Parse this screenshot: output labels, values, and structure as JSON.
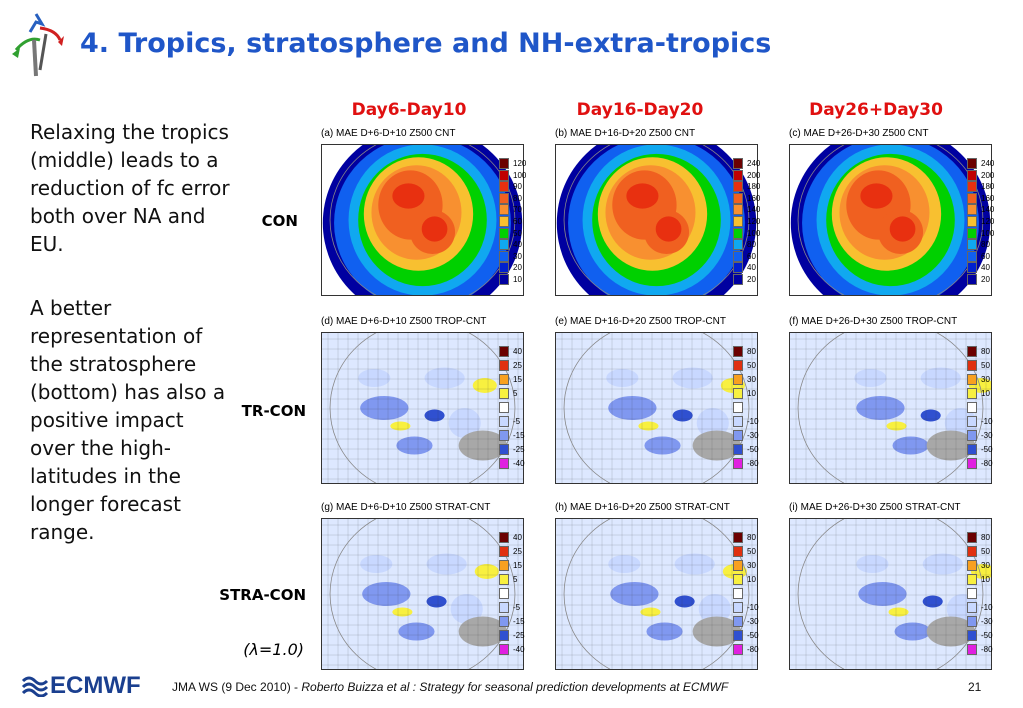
{
  "slide": {
    "title": "4. Tropics, stratosphere and NH-extra-tropics",
    "columns": [
      "Day6-Day10",
      "Day16-Day20",
      "Day26+Day30"
    ],
    "rows": [
      "CON",
      "TR-CON",
      "STRA-CON"
    ],
    "lambda": "(λ=1.0)",
    "bullets": [
      "Relaxing the tropics (middle) leads to a reduction of fc error both over NA and EU.",
      "A better representation of the stratosphere (bottom) has also a positive impact over the high-latitudes in the longer forecast range."
    ]
  },
  "panels": [
    {
      "title": "(a) MAE D+6-D+10 Z500 CNT",
      "scheme": "con",
      "labels": [
        "120",
        "100",
        "90",
        "80",
        "70",
        "60",
        "50",
        "40",
        "30",
        "20",
        "10"
      ]
    },
    {
      "title": "(b) MAE D+16-D+20 Z500 CNT",
      "scheme": "con",
      "labels": [
        "240",
        "200",
        "180",
        "160",
        "140",
        "120",
        "100",
        "80",
        "60",
        "40",
        "20"
      ]
    },
    {
      "title": "(c) MAE D+26-D+30 Z500 CNT",
      "scheme": "con",
      "labels": [
        "240",
        "200",
        "180",
        "160",
        "140",
        "120",
        "100",
        "80",
        "60",
        "40",
        "20"
      ]
    },
    {
      "title": "(d) MAE D+6-D+10 Z500 TROP-CNT",
      "scheme": "diff",
      "labels": [
        "40",
        "25",
        "15",
        "5",
        "",
        "-5",
        "-15",
        "-25",
        "-40"
      ]
    },
    {
      "title": "(e) MAE D+16-D+20 Z500 TROP-CNT",
      "scheme": "diff",
      "labels": [
        "80",
        "50",
        "30",
        "10",
        "",
        "-10",
        "-30",
        "-50",
        "-80"
      ]
    },
    {
      "title": "(f) MAE D+26-D+30 Z500 TROP-CNT",
      "scheme": "diff",
      "labels": [
        "80",
        "50",
        "30",
        "10",
        "",
        "-10",
        "-30",
        "-50",
        "-80"
      ]
    },
    {
      "title": "(g) MAE D+6-D+10 Z500 STRAT-CNT",
      "scheme": "diff",
      "labels": [
        "40",
        "25",
        "15",
        "5",
        "",
        "-5",
        "-15",
        "-25",
        "-40"
      ]
    },
    {
      "title": "(h) MAE D+16-D+20 Z500 STRAT-CNT",
      "scheme": "diff",
      "labels": [
        "80",
        "50",
        "30",
        "10",
        "",
        "-10",
        "-30",
        "-50",
        "-80"
      ]
    },
    {
      "title": "(i) MAE D+26-D+30 Z500 STRAT-CNT",
      "scheme": "diff",
      "labels": [
        "80",
        "50",
        "30",
        "10",
        "",
        "-10",
        "-30",
        "-50",
        "-80"
      ]
    }
  ],
  "colors": {
    "title": "#1f56c8",
    "column_heads": "#e01010",
    "con_scale": [
      "#6b0000",
      "#c00000",
      "#e83010",
      "#f06020",
      "#f89030",
      "#f8c030",
      "#00d000",
      "#10a8f0",
      "#1060f0",
      "#0020d0",
      "#0000a0"
    ],
    "diff_scale": [
      "#6b0000",
      "#e03010",
      "#f8a020",
      "#f8f040",
      "#ffffff",
      "#c8d8ff",
      "#8098f0",
      "#3050d0",
      "#e020e0"
    ]
  },
  "footer": {
    "logo": "ECMWF",
    "text": "JMA WS (9 Dec 2010) - ",
    "text_italic": "Roberto Buizza et al : Strategy for seasonal prediction developments at ECMWF",
    "page": "21"
  }
}
